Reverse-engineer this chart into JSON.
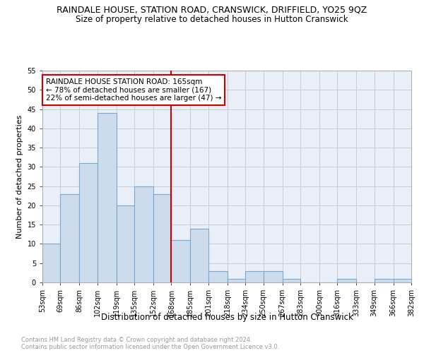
{
  "title": "RAINDALE HOUSE, STATION ROAD, CRANSWICK, DRIFFIELD, YO25 9QZ",
  "subtitle": "Size of property relative to detached houses in Hutton Cranswick",
  "xlabel": "Distribution of detached houses by size in Hutton Cranswick",
  "ylabel": "Number of detached properties",
  "footnote1": "Contains HM Land Registry data © Crown copyright and database right 2024.",
  "footnote2": "Contains public sector information licensed under the Open Government Licence v3.0.",
  "bar_left_edges": [
    53,
    69,
    86,
    102,
    119,
    135,
    152,
    168,
    185,
    201,
    218,
    234,
    250,
    267,
    283,
    300,
    316,
    333,
    349,
    366
  ],
  "bar_widths": [
    16,
    17,
    16,
    17,
    16,
    17,
    16,
    17,
    16,
    17,
    16,
    16,
    17,
    16,
    17,
    16,
    17,
    16,
    17,
    16
  ],
  "bar_heights": [
    10,
    23,
    31,
    44,
    20,
    25,
    23,
    11,
    14,
    3,
    1,
    3,
    3,
    1,
    0,
    0,
    1,
    0,
    1,
    1
  ],
  "bar_color": "#ccdcec",
  "bar_edge_color": "#7aa8cc",
  "xticklabels": [
    "53sqm",
    "69sqm",
    "86sqm",
    "102sqm",
    "119sqm",
    "135sqm",
    "152sqm",
    "168sqm",
    "185sqm",
    "201sqm",
    "218sqm",
    "234sqm",
    "250sqm",
    "267sqm",
    "283sqm",
    "300sqm",
    "316sqm",
    "333sqm",
    "349sqm",
    "366sqm",
    "382sqm"
  ],
  "vline_x": 168,
  "vline_color": "#cc0000",
  "annotation_box_text": "RAINDALE HOUSE STATION ROAD: 165sqm\n← 78% of detached houses are smaller (167)\n22% of semi-detached houses are larger (47) →",
  "annotation_box_color": "#cc0000",
  "ylim": [
    0,
    55
  ],
  "yticks": [
    0,
    5,
    10,
    15,
    20,
    25,
    30,
    35,
    40,
    45,
    50,
    55
  ],
  "grid_color": "#cccccc",
  "bg_color": "#e8eff8",
  "title_fontsize": 9,
  "subtitle_fontsize": 8.5,
  "xlabel_fontsize": 8.5,
  "ylabel_fontsize": 8,
  "tick_fontsize": 7,
  "annot_fontsize": 7.5,
  "footnote_fontsize": 6,
  "footnote_color": "#999999"
}
